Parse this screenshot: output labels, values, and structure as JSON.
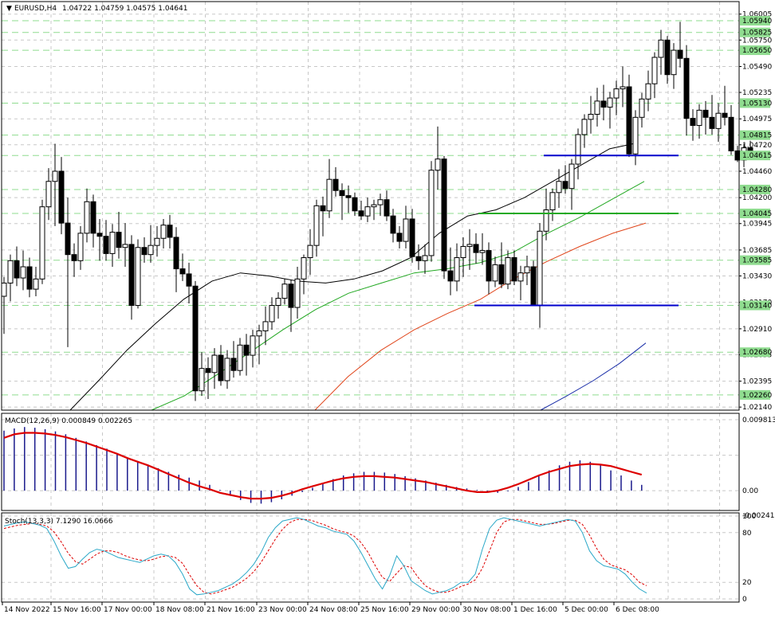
{
  "header": {
    "symbol": "EURUSD,H4",
    "ohlc": "1.04722 1.04759 1.04575 1.04641"
  },
  "macd_label": "MACD(12,26,9) 0.000849 0.002265",
  "stoch_label": "Stoch(13,3,3) 7.1290 16.0666",
  "colors": {
    "background": "#ffffff",
    "grid": "#c8c8c8",
    "candle": "#000000",
    "ma_fast": "#000000",
    "ma_mid": "#22a822",
    "ma_slow": "#e0451a",
    "ma_long": "#1a2ea8",
    "support_line": "#0000cc",
    "green_level": "#22aa22",
    "level_tag": "#8fdc8f",
    "macd_hist": "#1a1a8c",
    "macd_signal": "#dd0000",
    "stoch_main": "#2aa8c8",
    "stoch_signal": "#dd0000"
  },
  "chart_data": [
    {
      "type": "candlestick",
      "title": "EURUSD,H4",
      "ylim": [
        1.0211,
        1.0605
      ],
      "y_ticks": [
        "1.06005",
        "1.05750",
        "1.05490",
        "1.05235",
        "1.04975",
        "1.04720",
        "1.04460",
        "1.04200",
        "1.03945",
        "1.03685",
        "1.03430",
        "1.03170",
        "1.02910",
        "1.02655",
        "1.02395",
        "1.02140"
      ],
      "price_level_labels": [
        "1.05940",
        "1.05825",
        "1.05650",
        "1.05130",
        "1.04815",
        "1.04615",
        "1.04280",
        "1.04045",
        "1.03585",
        "1.03140",
        "1.02680",
        "1.02260"
      ],
      "x_tick_labels": [
        "14 Nov 2022",
        "15 Nov 16:00",
        "17 Nov 00:00",
        "18 Nov 08:00",
        "21 Nov 16:00",
        "23 Nov 00:00",
        "24 Nov 08:00",
        "25 Nov 16:00",
        "29 Nov 00:00",
        "30 Nov 08:00",
        "1 Dec 16:00",
        "5 Dec 00:00",
        "6 Dec 08:00"
      ],
      "candles_ohlc": [
        [
          1.0323,
          1.0342,
          1.0286,
          1.0336
        ],
        [
          1.0336,
          1.0364,
          1.0318,
          1.0358
        ],
        [
          1.0358,
          1.0372,
          1.0333,
          1.0341
        ],
        [
          1.0341,
          1.0368,
          1.0329,
          1.0352
        ],
        [
          1.0352,
          1.0361,
          1.0322,
          1.033
        ],
        [
          1.033,
          1.0352,
          1.0323,
          1.034
        ],
        [
          1.034,
          1.0418,
          1.0335,
          1.0411
        ],
        [
          1.0411,
          1.0449,
          1.0398,
          1.0436
        ],
        [
          1.0436,
          1.0473,
          1.0392,
          1.0446
        ],
        [
          1.0446,
          1.046,
          1.0384,
          1.0395
        ],
        [
          1.0395,
          1.042,
          1.0273,
          1.0364
        ],
        [
          1.0364,
          1.0375,
          1.0342,
          1.0358
        ],
        [
          1.0358,
          1.0392,
          1.0349,
          1.0385
        ],
        [
          1.0385,
          1.0429,
          1.0376,
          1.0416
        ],
        [
          1.0416,
          1.0423,
          1.0371,
          1.0385
        ],
        [
          1.0385,
          1.0399,
          1.0358,
          1.0382
        ],
        [
          1.0382,
          1.0398,
          1.0358,
          1.0365
        ],
        [
          1.0365,
          1.0394,
          1.0352,
          1.0386
        ],
        [
          1.0386,
          1.0406,
          1.036,
          1.0371
        ],
        [
          1.0371,
          1.0395,
          1.0352,
          1.0374
        ],
        [
          1.0374,
          1.0383,
          1.03,
          1.0314
        ],
        [
          1.0314,
          1.0379,
          1.0311,
          1.0371
        ],
        [
          1.0371,
          1.0381,
          1.0356,
          1.0364
        ],
        [
          1.0364,
          1.0393,
          1.0356,
          1.0373
        ],
        [
          1.0373,
          1.0392,
          1.0362,
          1.038
        ],
        [
          1.038,
          1.0399,
          1.037,
          1.0393
        ],
        [
          1.0393,
          1.0403,
          1.037,
          1.0381
        ],
        [
          1.0381,
          1.0391,
          1.0327,
          1.035
        ],
        [
          1.035,
          1.0365,
          1.0338,
          1.0345
        ],
        [
          1.0345,
          1.0356,
          1.0316,
          1.0333
        ],
        [
          1.0333,
          1.0338,
          1.022,
          1.023
        ],
        [
          1.023,
          1.0268,
          1.0225,
          1.0252
        ],
        [
          1.0252,
          1.0263,
          1.0222,
          1.0248
        ],
        [
          1.0248,
          1.0272,
          1.0232,
          1.0265
        ],
        [
          1.0265,
          1.0275,
          1.0235,
          1.024
        ],
        [
          1.024,
          1.027,
          1.0232,
          1.0262
        ],
        [
          1.0262,
          1.0279,
          1.0243,
          1.025
        ],
        [
          1.025,
          1.0282,
          1.0245,
          1.0275
        ],
        [
          1.0275,
          1.0286,
          1.0245,
          1.0265
        ],
        [
          1.0265,
          1.029,
          1.0253,
          1.0284
        ],
        [
          1.0284,
          1.0295,
          1.0256,
          1.0289
        ],
        [
          1.0289,
          1.0313,
          1.0275,
          1.0298
        ],
        [
          1.0298,
          1.0322,
          1.029,
          1.0314
        ],
        [
          1.0314,
          1.0327,
          1.0301,
          1.0321
        ],
        [
          1.0321,
          1.034,
          1.0315,
          1.0335
        ],
        [
          1.0335,
          1.0339,
          1.0288,
          1.0312
        ],
        [
          1.0312,
          1.0352,
          1.0301,
          1.034
        ],
        [
          1.034,
          1.0364,
          1.0325,
          1.0361
        ],
        [
          1.0361,
          1.0389,
          1.0344,
          1.0373
        ],
        [
          1.0373,
          1.0418,
          1.0362,
          1.0412
        ],
        [
          1.0412,
          1.0421,
          1.0382,
          1.0407
        ],
        [
          1.0407,
          1.0458,
          1.04,
          1.0438
        ],
        [
          1.0438,
          1.045,
          1.0421,
          1.0427
        ],
        [
          1.0427,
          1.0434,
          1.0398,
          1.0422
        ],
        [
          1.0422,
          1.0432,
          1.0405,
          1.042
        ],
        [
          1.042,
          1.0425,
          1.0402,
          1.0407
        ],
        [
          1.0407,
          1.0417,
          1.0398,
          1.0402
        ],
        [
          1.0402,
          1.042,
          1.0396,
          1.0411
        ],
        [
          1.0411,
          1.0418,
          1.0398,
          1.0413
        ],
        [
          1.0413,
          1.0424,
          1.0402,
          1.0418
        ],
        [
          1.0418,
          1.0427,
          1.0397,
          1.0402
        ],
        [
          1.0402,
          1.0409,
          1.0376,
          1.0385
        ],
        [
          1.0385,
          1.0392,
          1.037,
          1.0377
        ],
        [
          1.0377,
          1.0412,
          1.037,
          1.0399
        ],
        [
          1.0399,
          1.0409,
          1.0356,
          1.0362
        ],
        [
          1.0362,
          1.0374,
          1.0349,
          1.0358
        ],
        [
          1.0358,
          1.0374,
          1.0345,
          1.0363
        ],
        [
          1.0363,
          1.0456,
          1.0357,
          1.0447
        ],
        [
          1.0447,
          1.049,
          1.0428,
          1.0458
        ],
        [
          1.0458,
          1.0461,
          1.034,
          1.0348
        ],
        [
          1.0348,
          1.0371,
          1.0324,
          1.0338
        ],
        [
          1.0338,
          1.0375,
          1.0328,
          1.0361
        ],
        [
          1.0361,
          1.0381,
          1.0342,
          1.0372
        ],
        [
          1.0372,
          1.0389,
          1.0349,
          1.0374
        ],
        [
          1.0374,
          1.0385,
          1.0355,
          1.0366
        ],
        [
          1.0366,
          1.0385,
          1.0354,
          1.0368
        ],
        [
          1.0368,
          1.0376,
          1.0325,
          1.0338
        ],
        [
          1.0338,
          1.0362,
          1.0332,
          1.0354
        ],
        [
          1.0354,
          1.0376,
          1.0331,
          1.0335
        ],
        [
          1.0335,
          1.0368,
          1.033,
          1.0361
        ],
        [
          1.0361,
          1.0368,
          1.0334,
          1.0338
        ],
        [
          1.0338,
          1.0353,
          1.0319,
          1.0346
        ],
        [
          1.0346,
          1.0363,
          1.0334,
          1.0352
        ],
        [
          1.0352,
          1.0358,
          1.0316,
          1.0314
        ],
        [
          1.0314,
          1.0395,
          1.0292,
          1.0387
        ],
        [
          1.0387,
          1.0429,
          1.0378,
          1.0408
        ],
        [
          1.0408,
          1.0429,
          1.0397,
          1.0425
        ],
        [
          1.0425,
          1.0448,
          1.041,
          1.0436
        ],
        [
          1.0436,
          1.0452,
          1.0424,
          1.0429
        ],
        [
          1.0429,
          1.0458,
          1.0408,
          1.0453
        ],
        [
          1.0453,
          1.0488,
          1.0438,
          1.0482
        ],
        [
          1.0482,
          1.0502,
          1.0469,
          1.0497
        ],
        [
          1.0497,
          1.052,
          1.0483,
          1.0502
        ],
        [
          1.0502,
          1.0528,
          1.049,
          1.0515
        ],
        [
          1.0515,
          1.0531,
          1.0496,
          1.0509
        ],
        [
          1.0509,
          1.0524,
          1.0488,
          1.0518
        ],
        [
          1.0518,
          1.0535,
          1.0501,
          1.0527
        ],
        [
          1.0527,
          1.0549,
          1.0509,
          1.0529
        ],
        [
          1.0529,
          1.0541,
          1.046,
          1.0463
        ],
        [
          1.0463,
          1.0506,
          1.0452,
          1.0499
        ],
        [
          1.0499,
          1.0523,
          1.0489,
          1.0517
        ],
        [
          1.0517,
          1.0545,
          1.0505,
          1.0532
        ],
        [
          1.0532,
          1.0563,
          1.0518,
          1.0558
        ],
        [
          1.0558,
          1.0585,
          1.0541,
          1.0575
        ],
        [
          1.0575,
          1.0579,
          1.0532,
          1.0541
        ],
        [
          1.0541,
          1.0572,
          1.0527,
          1.0565
        ],
        [
          1.0565,
          1.0593,
          1.0548,
          1.0557
        ],
        [
          1.0557,
          1.057,
          1.0481,
          1.0498
        ],
        [
          1.0498,
          1.0507,
          1.0476,
          1.0491
        ],
        [
          1.0491,
          1.0512,
          1.0478,
          1.0506
        ],
        [
          1.0506,
          1.0515,
          1.0482,
          1.0499
        ],
        [
          1.0499,
          1.0521,
          1.0482,
          1.0488
        ],
        [
          1.0488,
          1.0513,
          1.0475,
          1.0503
        ],
        [
          1.0503,
          1.053,
          1.0491,
          1.0499
        ],
        [
          1.0499,
          1.0511,
          1.0462,
          1.0466
        ],
        [
          1.0466,
          1.0471,
          1.0455,
          1.0457
        ],
        [
          1.0457,
          1.0473,
          1.045,
          1.0469
        ],
        [
          1.0469,
          1.0476,
          1.0458,
          1.0464
        ]
      ],
      "moving_averages": [
        {
          "color": "black",
          "values": [
            1.0211,
            1.024,
            1.027,
            1.0296,
            1.032,
            1.0338,
            1.0346,
            1.0343,
            1.0338,
            1.0336,
            1.034,
            1.0348,
            1.0361,
            1.0385,
            1.0402,
            1.0408,
            1.042,
            1.0436,
            1.0452,
            1.0468,
            1.0474
          ]
        },
        {
          "color": "green",
          "values": [
            1.0211,
            1.0225,
            1.0246,
            1.0268,
            1.029,
            1.031,
            1.0326,
            1.0336,
            1.0346,
            1.035,
            1.0356,
            1.0366,
            1.0384,
            1.04,
            1.0418,
            1.0436
          ]
        },
        {
          "color": "orange-red",
          "values": [
            1.0211,
            1.0244,
            1.027,
            1.029,
            1.0306,
            1.032,
            1.034,
            1.0357,
            1.0372,
            1.0385,
            1.0395
          ]
        },
        {
          "color": "blue",
          "values": [
            1.0211,
            1.0225,
            1.024,
            1.0257,
            1.0277
          ]
        }
      ],
      "horizontal_lines": [
        {
          "color": "blue",
          "value": 1.04615
        },
        {
          "color": "green",
          "value": 1.04045
        },
        {
          "color": "blue",
          "value": 1.0314
        }
      ]
    },
    {
      "type": "bar+line",
      "title": "MACD(12,26,9) 0.000849 0.002265",
      "ylim": [
        -0.002416,
        0.009813
      ],
      "y_ticks": [
        "0.009813",
        "0.00",
        "-0.002416"
      ],
      "histogram": [
        0.0083,
        0.0086,
        0.0088,
        0.0087,
        0.0085,
        0.0082,
        0.0078,
        0.0073,
        0.0068,
        0.0063,
        0.0058,
        0.0052,
        0.0046,
        0.0041,
        0.0036,
        0.0031,
        0.0026,
        0.0022,
        0.0018,
        0.0014,
        0.0008,
        0.0001,
        -0.0007,
        -0.0013,
        -0.0017,
        -0.0018,
        -0.0016,
        -0.0012,
        -0.0007,
        -0.0002,
        0.0004,
        0.001,
        0.0016,
        0.0021,
        0.0024,
        0.0026,
        0.0026,
        0.0025,
        0.0023,
        0.002,
        0.0017,
        0.0014,
        0.0011,
        0.0008,
        0.0005,
        0.0003,
        0.0001,
        -0.0002,
        -0.0003,
        -0.0001,
        0.0005,
        0.0012,
        0.002,
        0.0028,
        0.0035,
        0.004,
        0.0042,
        0.004,
        0.0035,
        0.0028,
        0.0021,
        0.0014,
        0.0008
      ],
      "signal": [
        0.0073,
        0.0078,
        0.008,
        0.008,
        0.0079,
        0.0077,
        0.0074,
        0.007,
        0.0066,
        0.0061,
        0.0056,
        0.0051,
        0.0045,
        0.004,
        0.0035,
        0.0029,
        0.0023,
        0.0017,
        0.0011,
        0.0006,
        0.0002,
        -0.0003,
        -0.0006,
        -0.0009,
        -0.0011,
        -0.0011,
        -0.001,
        -0.0007,
        -0.0003,
        0.0002,
        0.0006,
        0.001,
        0.0014,
        0.0017,
        0.0019,
        0.002,
        0.002,
        0.0019,
        0.0018,
        0.0016,
        0.0014,
        0.0012,
        0.0009,
        0.0006,
        0.0003,
        0.0,
        -0.0002,
        -0.0002,
        0.0,
        0.0004,
        0.0009,
        0.0015,
        0.0021,
        0.0026,
        0.003,
        0.0034,
        0.0036,
        0.0037,
        0.0036,
        0.0034,
        0.003,
        0.0026,
        0.0022
      ]
    },
    {
      "type": "line",
      "title": "Stoch(13,3,3) 7.1290 16.0666",
      "ylim": [
        0,
        100
      ],
      "y_ticks": [
        "100",
        "80",
        "20",
        "0"
      ],
      "main": [
        88,
        90,
        92,
        93,
        91,
        89,
        85,
        70,
        52,
        37,
        39,
        48,
        56,
        60,
        58,
        54,
        50,
        48,
        46,
        44,
        48,
        52,
        54,
        52,
        44,
        30,
        12,
        5,
        6,
        8,
        10,
        14,
        18,
        24,
        32,
        42,
        56,
        74,
        86,
        94,
        96,
        98,
        96,
        92,
        88,
        86,
        82,
        80,
        78,
        70,
        56,
        40,
        24,
        12,
        28,
        52,
        40,
        22,
        16,
        10,
        6,
        8,
        10,
        14,
        20,
        20,
        30,
        60,
        85,
        95,
        98,
        96,
        94,
        92,
        90,
        88,
        90,
        92,
        94,
        96,
        94,
        80,
        58,
        46,
        40,
        38,
        36,
        30,
        20,
        12,
        7
      ],
      "signal": [
        85,
        87,
        89,
        90,
        91,
        90,
        88,
        81,
        69,
        55,
        45,
        42,
        48,
        54,
        58,
        58,
        56,
        52,
        49,
        47,
        46,
        48,
        51,
        52,
        50,
        43,
        29,
        16,
        8,
        6,
        8,
        11,
        14,
        19,
        25,
        33,
        44,
        58,
        72,
        84,
        92,
        96,
        96,
        95,
        92,
        89,
        85,
        82,
        80,
        76,
        68,
        56,
        40,
        26,
        21,
        31,
        40,
        38,
        26,
        16,
        11,
        8,
        8,
        11,
        15,
        18,
        23,
        37,
        58,
        80,
        93,
        96,
        96,
        94,
        92,
        90,
        90,
        91,
        93,
        95,
        95,
        90,
        77,
        61,
        48,
        41,
        38,
        35,
        29,
        20,
        16
      ]
    }
  ]
}
